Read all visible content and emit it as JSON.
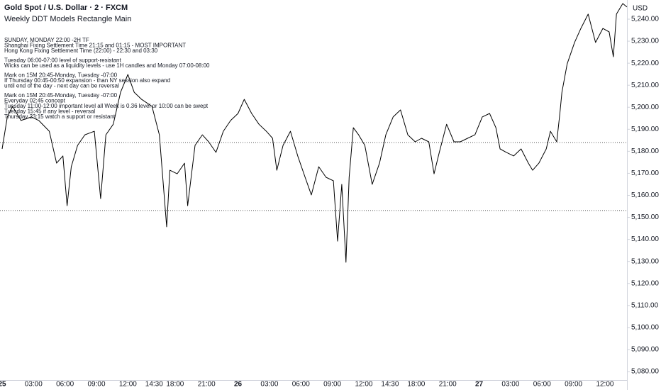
{
  "chart_data": {
    "type": "line",
    "title": "Gold Spot / U.S. Dollar · 2 · FXCM",
    "subtitle": "Weekly DDT Models Rectangle Main",
    "currency": "USD",
    "color": "#000000",
    "annotations": [
      "SUNDAY, MONDAY 22:00 -2H TF",
      "Shanghai Fixing Settlement Time 21:15 and 01:15 - MOST IMPORTANT",
      "Hong Kong Fixing Settlement Time (22:00) - 22:30 and 03:30",
      "Tuesday 06:00-07:00 level of support-resistant",
      "Wicks can be used as a liquidity levels - use 1H candles and Monday 07:00-08:00",
      "Mark on 15M 20:45-Monday, Tuesday -07:00",
      "If Thursday 00:45-00:50 expansion - than NY session also expand",
      "until end of the day - next day can be reversal",
      "Mark on 15M 20:45-Monday, Tuesday -07:00",
      "Everyday 02:45 concept",
      "Tuesday 11:00-12:00 important level all Week is 0.36 level or 10:00 can be swept",
      "Tuesday 15:45 if any level - reversal",
      "Thursday 23:15 watch a support or resistant"
    ],
    "x": [
      0.0,
      0.5,
      1.0,
      1.8,
      2.8,
      3.5,
      4.5,
      5.2,
      5.8,
      6.2,
      6.6,
      7.2,
      7.9,
      8.8,
      9.4,
      9.9,
      10.6,
      11.3,
      12.0,
      12.6,
      13.3,
      14.3,
      15.0,
      15.7,
      16.0,
      16.7,
      17.4,
      17.7,
      18.4,
      19.1,
      19.7,
      20.4,
      21.1,
      21.8,
      22.5,
      23.1,
      23.8,
      24.5,
      25.2,
      25.8,
      26.2,
      26.8,
      27.5,
      28.2,
      28.9,
      29.5,
      30.2,
      30.9,
      31.6,
      32.0,
      32.4,
      32.8,
      33.1,
      33.5,
      34.0,
      34.6,
      35.3,
      36.0,
      36.6,
      37.3,
      38.0,
      38.7,
      39.4,
      40.0,
      40.7,
      41.2,
      41.7,
      42.4,
      43.1,
      43.7,
      44.4,
      45.1,
      45.8,
      46.5,
      47.1,
      47.5,
      48.1,
      48.8,
      49.5,
      50.2,
      50.6,
      51.2,
      51.9,
      52.3,
      52.9,
      53.2,
      53.4,
      53.9,
      54.6,
      55.2,
      55.9,
      56.6,
      57.3,
      57.9,
      58.3,
      58.6,
      59.2,
      59.6
    ],
    "values": [
      5181.1,
      5195.6,
      5200.4,
      5194.0,
      5195.6,
      5194.0,
      5189.1,
      5174.6,
      5177.9,
      5155.3,
      5173.0,
      5182.7,
      5187.5,
      5189.1,
      5158.5,
      5187.5,
      5192.3,
      5206.8,
      5214.9,
      5206.8,
      5203.6,
      5200.4,
      5187.5,
      5145.7,
      5171.4,
      5169.8,
      5174.6,
      5155.3,
      5182.7,
      5187.5,
      5184.3,
      5179.5,
      5189.1,
      5194.0,
      5197.2,
      5203.6,
      5197.2,
      5192.3,
      5189.1,
      5185.9,
      5171.4,
      5182.7,
      5189.1,
      5177.9,
      5168.2,
      5160.2,
      5173.0,
      5168.2,
      5166.6,
      5139.2,
      5165.0,
      5129.6,
      5168.2,
      5190.7,
      5187.5,
      5182.7,
      5165.0,
      5174.6,
      5187.5,
      5195.6,
      5198.8,
      5187.5,
      5184.3,
      5185.9,
      5184.3,
      5169.8,
      5179.5,
      5192.3,
      5184.3,
      5184.3,
      5185.9,
      5187.5,
      5195.6,
      5197.2,
      5190.7,
      5181.1,
      5179.5,
      5177.9,
      5181.1,
      5174.6,
      5171.4,
      5174.6,
      5181.1,
      5189.1,
      5184.3,
      5197.2,
      5206.8,
      5219.7,
      5229.4,
      5235.8,
      5242.3,
      5229.4,
      5235.8,
      5234.2,
      5222.9,
      5242.3,
      5247.1,
      5245.5
    ],
    "levels": [
      5184.0,
      5153.1
    ],
    "xlim": [
      -0.2,
      59.6
    ],
    "ylim": [
      5075.8,
      5248.7
    ],
    "xticks": [
      {
        "value": 0,
        "label": "25"
      },
      {
        "value": 3,
        "label": "03:00"
      },
      {
        "value": 6,
        "label": "06:00"
      },
      {
        "value": 9,
        "label": "09:00"
      },
      {
        "value": 12,
        "label": "12:00"
      },
      {
        "value": 14.5,
        "label": "14:30"
      },
      {
        "value": 16.5,
        "label": "18:00"
      },
      {
        "value": 19.5,
        "label": "21:00"
      },
      {
        "value": 22.5,
        "label": "26"
      },
      {
        "value": 25.5,
        "label": "03:00"
      },
      {
        "value": 28.5,
        "label": "06:00"
      },
      {
        "value": 31.5,
        "label": "09:00"
      },
      {
        "value": 34.5,
        "label": "12:00"
      },
      {
        "value": 37,
        "label": "14:30"
      },
      {
        "value": 39.5,
        "label": "18:00"
      },
      {
        "value": 42.5,
        "label": "21:00"
      },
      {
        "value": 45.5,
        "label": "27"
      },
      {
        "value": 48.5,
        "label": "03:00"
      },
      {
        "value": 51.5,
        "label": "06:00"
      },
      {
        "value": 54.5,
        "label": "09:00"
      },
      {
        "value": 57.5,
        "label": "12:00"
      }
    ],
    "yticks": [
      {
        "value": 5080,
        "label": "5,080.00"
      },
      {
        "value": 5090,
        "label": "5,090.00"
      },
      {
        "value": 5100,
        "label": "5,100.00"
      },
      {
        "value": 5110,
        "label": "5,110.00"
      },
      {
        "value": 5120,
        "label": "5,120.00"
      },
      {
        "value": 5130,
        "label": "5,130.00"
      },
      {
        "value": 5140,
        "label": "5,140.00"
      },
      {
        "value": 5150,
        "label": "5,150.00"
      },
      {
        "value": 5160,
        "label": "5,160.00"
      },
      {
        "value": 5170,
        "label": "5,170.00"
      },
      {
        "value": 5180,
        "label": "5,180.00"
      },
      {
        "value": 5190,
        "label": "5,190.00"
      },
      {
        "value": 5200,
        "label": "5,200.00"
      },
      {
        "value": 5210,
        "label": "5,210.00"
      },
      {
        "value": 5220,
        "label": "5,220.00"
      },
      {
        "value": 5230,
        "label": "5,230.00"
      },
      {
        "value": 5240,
        "label": "5,240.00"
      }
    ]
  }
}
